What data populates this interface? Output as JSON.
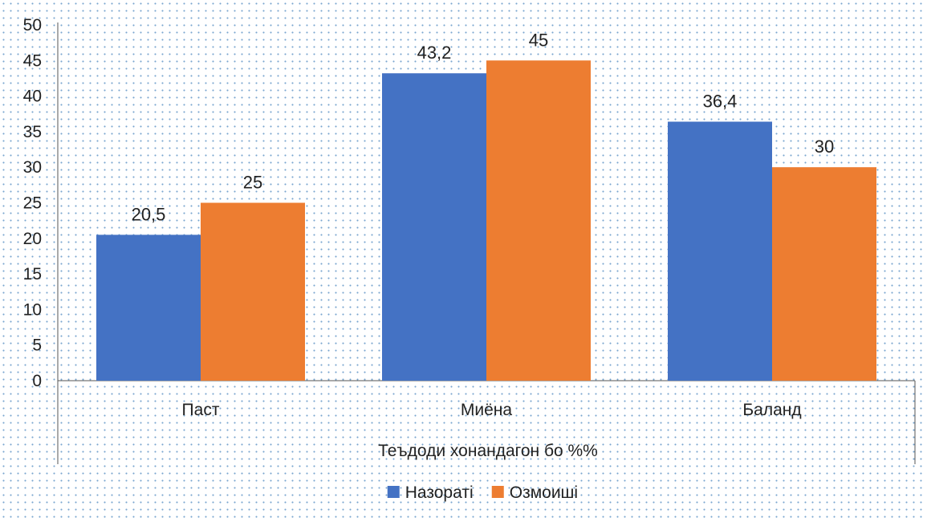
{
  "chart_data": {
    "type": "bar",
    "categories": [
      "Паст",
      "Миёна",
      "Баланд"
    ],
    "series": [
      {
        "name": "Назораті",
        "values": [
          20.5,
          43.2,
          36.4
        ],
        "labels": [
          "20,5",
          "43,2",
          "36,4"
        ],
        "color": "#4472c4"
      },
      {
        "name": "Озмоиші",
        "values": [
          25,
          45,
          30
        ],
        "labels": [
          "25",
          "45",
          "30"
        ],
        "color": "#ed7d31"
      }
    ],
    "xlabel": "Теъдоди хонандагон бо   %%",
    "ylim": [
      0,
      50
    ],
    "yticks": [
      0,
      5,
      10,
      15,
      20,
      25,
      30,
      35,
      40,
      45,
      50
    ],
    "legend": "bottom",
    "grid": false
  }
}
